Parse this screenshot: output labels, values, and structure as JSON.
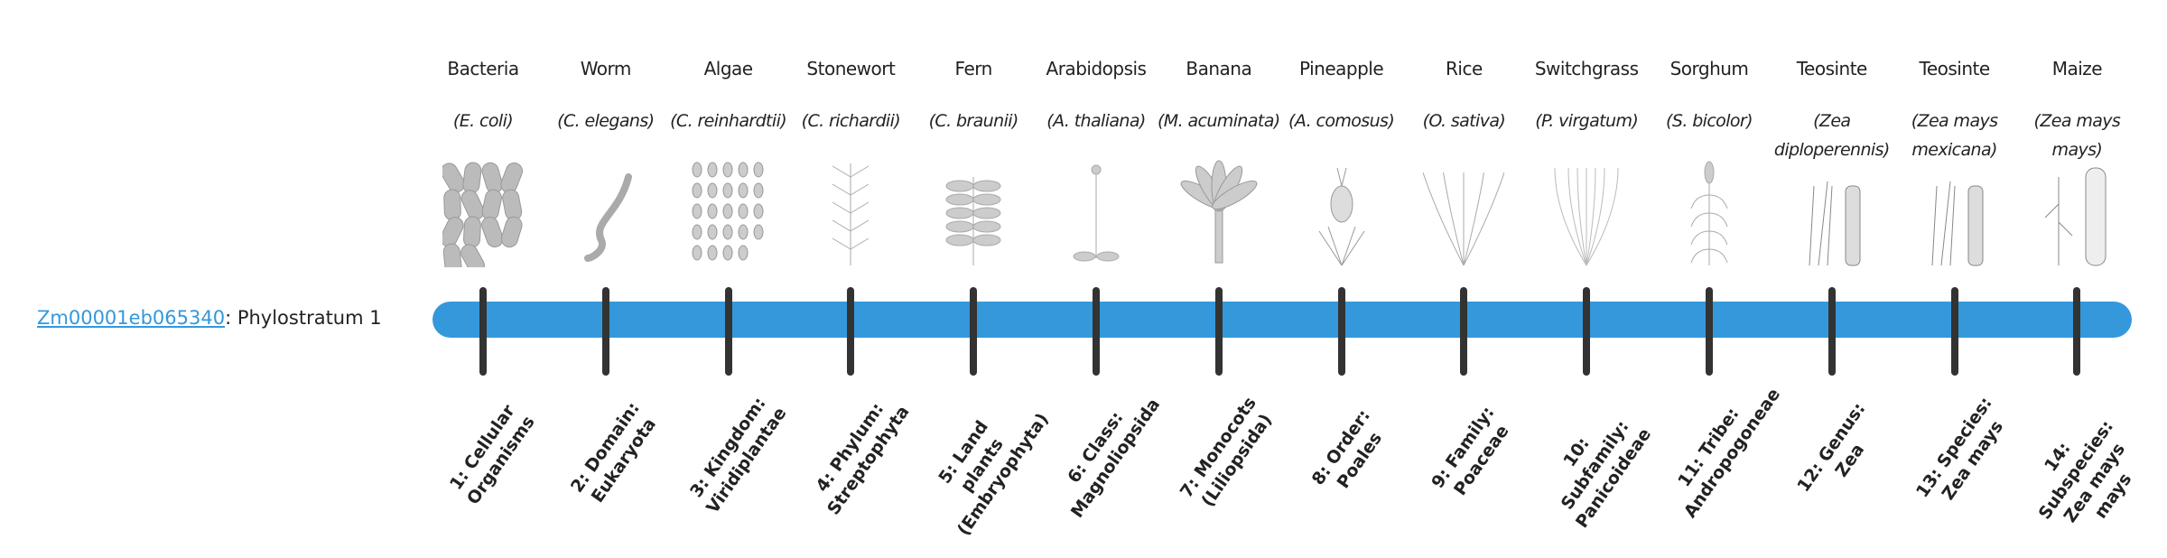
{
  "gene": {
    "id": "Zm00001eb065340",
    "suffix": ": Phylostratum 1"
  },
  "colors": {
    "bar": "#3498db",
    "tick": "#333333",
    "link": "#3498db"
  },
  "columns": [
    {
      "common": "Bacteria",
      "scientific": "(E. coli)",
      "icon": "bacteria",
      "rank": "1: Cellular Organisms"
    },
    {
      "common": "Worm",
      "scientific": "(C. elegans)",
      "icon": "worm",
      "rank": "2: Domain: Eukaryota"
    },
    {
      "common": "Algae",
      "scientific": "(C. reinhardtii)",
      "icon": "algae",
      "rank": "3: Kingdom: Viridiplantae"
    },
    {
      "common": "Stonewort",
      "scientific": "(C. richardii)",
      "icon": "stonewort",
      "rank": "4: Phylum: Streptophyta"
    },
    {
      "common": "Fern",
      "scientific": "(C. braunii)",
      "icon": "fern",
      "rank": "5: Land plants (Embryophyta)"
    },
    {
      "common": "Arabidopsis",
      "scientific": "(A. thaliana)",
      "icon": "arabidopsis",
      "rank": "6: Class: Magnoliopsida"
    },
    {
      "common": "Banana",
      "scientific": "(M. acuminata)",
      "icon": "banana",
      "rank": "7: Monocots (Liliopsida)"
    },
    {
      "common": "Pineapple",
      "scientific": "(A. comosus)",
      "icon": "pineapple",
      "rank": "8: Order: Poales"
    },
    {
      "common": "Rice",
      "scientific": "(O. sativa)",
      "icon": "rice",
      "rank": "9: Family: Poaceae"
    },
    {
      "common": "Switchgrass",
      "scientific": "(P. virgatum)",
      "icon": "switchgrass",
      "rank": "10: Subfamily: Panicoideae"
    },
    {
      "common": "Sorghum",
      "scientific": "(S. bicolor)",
      "icon": "sorghum",
      "rank": "11: Tribe: Andropogoneae"
    },
    {
      "common": "Teosinte",
      "scientific": "(Zea diploperennis)",
      "icon": "teosinte",
      "rank": "12: Genus: Zea"
    },
    {
      "common": "Teosinte",
      "scientific": "(Zea mays mexicana)",
      "icon": "teosinte",
      "rank": "13: Species: Zea mays"
    },
    {
      "common": "Maize",
      "scientific": "(Zea mays mays)",
      "icon": "maize",
      "rank": "14: Subspecies: Zea mays mays"
    }
  ]
}
